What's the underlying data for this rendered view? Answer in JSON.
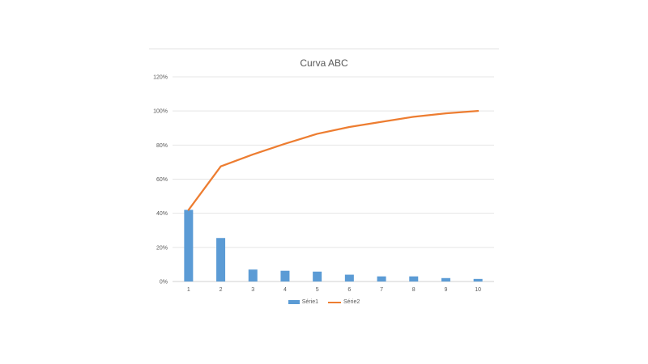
{
  "chart_data": {
    "type": "bar",
    "title": "Curva ABC",
    "categories": [
      "1",
      "2",
      "3",
      "4",
      "5",
      "6",
      "7",
      "8",
      "9",
      "10"
    ],
    "series": [
      {
        "name": "Série1",
        "type": "bar",
        "color": "#5B9BD5",
        "values": [
          0.42,
          0.255,
          0.07,
          0.063,
          0.058,
          0.04,
          0.03,
          0.03,
          0.02,
          0.015
        ]
      },
      {
        "name": "Série2",
        "type": "line",
        "color": "#ED7D31",
        "values": [
          0.42,
          0.675,
          0.745,
          0.808,
          0.866,
          0.906,
          0.936,
          0.966,
          0.986,
          1.0
        ]
      }
    ],
    "yticks": [
      "0%",
      "20%",
      "40%",
      "60%",
      "80%",
      "100%",
      "120%"
    ],
    "ylim": [
      0,
      1.2
    ],
    "xlabel": "",
    "ylabel": "",
    "grid": true,
    "legend_position": "bottom"
  }
}
